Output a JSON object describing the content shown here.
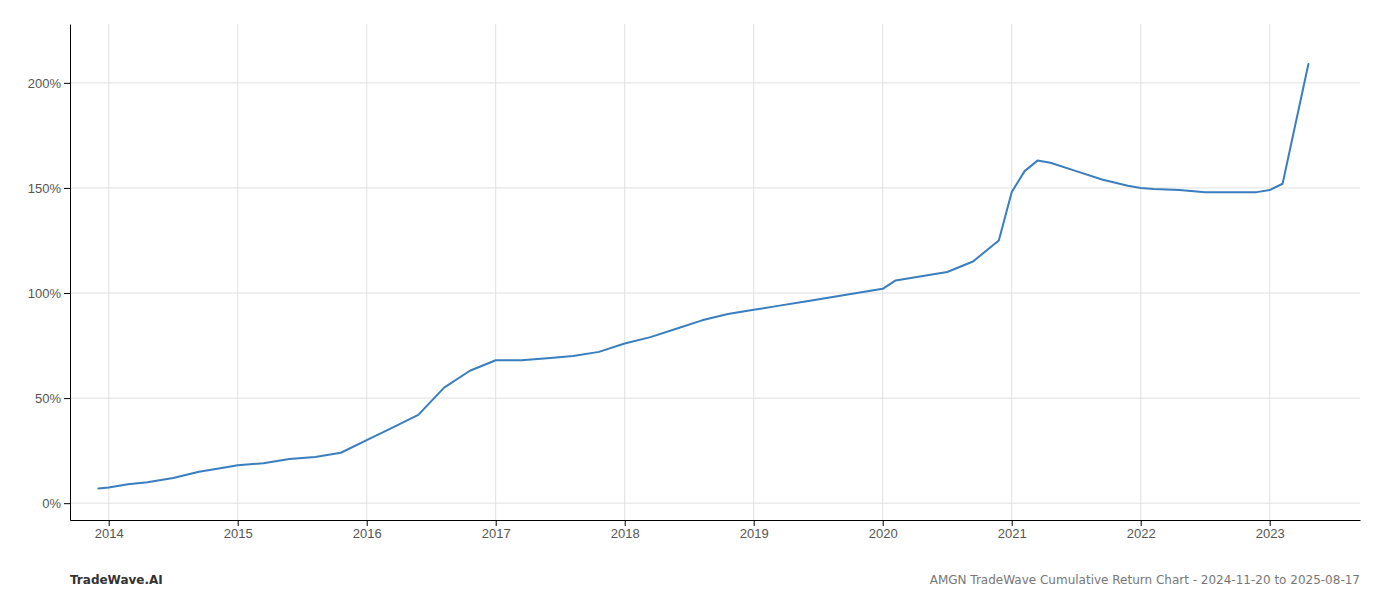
{
  "chart_data": {
    "type": "line",
    "x": [
      2013.92,
      2014.0,
      2014.15,
      2014.3,
      2014.5,
      2014.7,
      2014.9,
      2015.0,
      2015.2,
      2015.4,
      2015.6,
      2015.8,
      2016.0,
      2016.2,
      2016.4,
      2016.6,
      2016.8,
      2017.0,
      2017.2,
      2017.4,
      2017.6,
      2017.8,
      2018.0,
      2018.2,
      2018.4,
      2018.6,
      2018.8,
      2019.0,
      2019.2,
      2019.4,
      2019.6,
      2019.8,
      2020.0,
      2020.1,
      2020.3,
      2020.5,
      2020.7,
      2020.9,
      2021.0,
      2021.1,
      2021.2,
      2021.3,
      2021.5,
      2021.7,
      2021.9,
      2022.0,
      2022.1,
      2022.3,
      2022.5,
      2022.7,
      2022.9,
      2023.0,
      2023.1,
      2023.3
    ],
    "values": [
      7,
      7.5,
      9,
      10,
      12,
      15,
      17,
      18,
      19,
      21,
      22,
      24,
      30,
      36,
      42,
      55,
      63,
      68,
      68,
      69,
      70,
      72,
      76,
      79,
      83,
      87,
      90,
      92,
      94,
      96,
      98,
      100,
      102,
      106,
      108,
      110,
      115,
      125,
      148,
      158,
      163,
      162,
      158,
      154,
      151,
      150,
      149.5,
      149,
      148,
      148,
      148,
      149,
      152,
      209
    ],
    "color": "#3a7ebf",
    "xlim": [
      2013.7,
      2023.7
    ],
    "xticks": [
      2014,
      2015,
      2016,
      2017,
      2018,
      2019,
      2020,
      2021,
      2022,
      2023
    ],
    "ylim": [
      -8,
      228
    ],
    "yticks": [
      {
        "value": 0,
        "label": "0%"
      },
      {
        "value": 50,
        "label": "50%"
      },
      {
        "value": 100,
        "label": "100%"
      },
      {
        "value": 150,
        "label": "150%"
      },
      {
        "value": 200,
        "label": "200%"
      }
    ],
    "grid": true,
    "annotations": [
      "TradeWave.AI",
      "AMGN TradeWave Cumulative Return Chart - 2024-11-20 to 2025-08-17"
    ]
  }
}
